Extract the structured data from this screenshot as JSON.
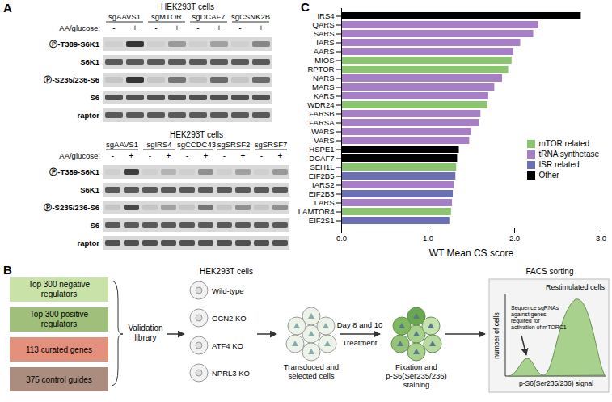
{
  "panel_labels": [
    "A",
    "B",
    "C"
  ],
  "blots": [
    {
      "cell_line": "HEK293T cells",
      "condition_label": "AA/glucose:",
      "conditions": [
        "-",
        "+"
      ],
      "groups": [
        "sgAAVS1",
        "sgMTOR",
        "sgDCAF7",
        "sgCSNK2B"
      ],
      "rows": [
        {
          "label": "Ⓟ-T389-S6K1",
          "intensity": [
            0.05,
            0.9,
            0.05,
            0.35,
            0.05,
            0.3,
            0.05,
            0.45
          ]
        },
        {
          "label": "S6K1",
          "intensity": [
            0.7,
            0.7,
            0.7,
            0.7,
            0.7,
            0.7,
            0.7,
            0.7
          ]
        },
        {
          "label": "Ⓟ-S235/236-S6",
          "intensity": [
            0.1,
            0.9,
            0.1,
            0.55,
            0.1,
            0.6,
            0.1,
            0.6
          ]
        },
        {
          "label": "S6",
          "intensity": [
            0.75,
            0.75,
            0.75,
            0.75,
            0.75,
            0.75,
            0.75,
            0.75
          ]
        },
        {
          "label": "raptor",
          "intensity": [
            0.7,
            0.7,
            0.7,
            0.7,
            0.7,
            0.7,
            0.7,
            0.7
          ]
        }
      ]
    },
    {
      "cell_line": "HEK293T cells",
      "condition_label": "AA/glucose:",
      "conditions": [
        "-",
        "+"
      ],
      "groups": [
        "sgAAVS1",
        "sgIRS4",
        "sgCCDC43",
        "sgSRSF2",
        "sgSRSF7"
      ],
      "rows": [
        {
          "label": "Ⓟ-T389-S6K1",
          "intensity": [
            0.05,
            0.85,
            0.05,
            0.2,
            0.05,
            0.4,
            0.05,
            0.3,
            0.05,
            0.35
          ]
        },
        {
          "label": "S6K1",
          "intensity": [
            0.7,
            0.7,
            0.7,
            0.7,
            0.7,
            0.7,
            0.7,
            0.7,
            0.7,
            0.7
          ]
        },
        {
          "label": "Ⓟ-S235/236-S6",
          "intensity": [
            0.1,
            0.8,
            0.1,
            0.3,
            0.1,
            0.55,
            0.1,
            0.4,
            0.1,
            0.4
          ]
        },
        {
          "label": "S6",
          "intensity": [
            0.7,
            0.7,
            0.7,
            0.7,
            0.7,
            0.7,
            0.7,
            0.7,
            0.7,
            0.7
          ]
        },
        {
          "label": "raptor",
          "intensity": [
            0.75,
            0.75,
            0.75,
            0.75,
            0.75,
            0.75,
            0.75,
            0.75,
            0.75,
            0.75
          ]
        }
      ]
    }
  ],
  "diagram": {
    "library_boxes": [
      {
        "text": "Top 300 negative regulators",
        "color": "#c9e2a8"
      },
      {
        "text": "Top 300 positive regulators",
        "color": "#9fbf7a"
      },
      {
        "text": "113 curated genes",
        "color": "#e3907c"
      },
      {
        "text": "375 control guides",
        "color": "#ab8d80"
      }
    ],
    "library_label": "Validation library",
    "cell_line": "HEK293T cells",
    "cell_types": [
      "Wild-type",
      "GCN2 KO",
      "ATF4 KO",
      "NPRL3 KO"
    ],
    "transduced": "Transduced and selected cells",
    "day": "Day 8 and 10",
    "treatment": "Treatment",
    "fixation": "Fixation and p-S6(Ser235/236) staining",
    "facs_title": "FACS sorting",
    "population": "Restimulated cells",
    "y_label": "number of cells",
    "x_label": "p-S6(Ser235/236) signal",
    "note": "Sequence sgRNAs against genes required for activation of mTORC1"
  },
  "chart_data": {
    "type": "bar",
    "orientation": "horizontal",
    "x_label": "WT Mean CS score",
    "xlim": [
      0,
      3
    ],
    "xticks": [
      0,
      1,
      2,
      3
    ],
    "legend": "right",
    "categories": [
      "IRS4",
      "QARS",
      "SARS",
      "IARS",
      "AARS",
      "MIOS",
      "RPTOR",
      "NARS",
      "MARS",
      "KARS",
      "WDR24",
      "FARSB",
      "FARSA",
      "WARS",
      "VARS",
      "HSPE1",
      "DCAF7",
      "SEH1L",
      "EIF2B5",
      "IARS2",
      "EIF2B3",
      "LARS",
      "LAMTOR4",
      "EIF2S1"
    ],
    "series": [
      {
        "name": "mTOR related",
        "color": "#8cc56f",
        "values": [
          null,
          null,
          null,
          null,
          null,
          1.97,
          1.93,
          null,
          null,
          null,
          1.69,
          null,
          null,
          null,
          null,
          null,
          null,
          1.33,
          null,
          null,
          null,
          null,
          1.27,
          null
        ]
      },
      {
        "name": "tRNA synthetase",
        "color": "#a67fc6",
        "values": [
          null,
          2.28,
          2.22,
          2.07,
          1.99,
          null,
          null,
          1.86,
          1.77,
          1.7,
          null,
          1.61,
          1.59,
          1.5,
          1.48,
          null,
          null,
          null,
          null,
          1.3,
          null,
          1.28,
          null,
          null
        ]
      },
      {
        "name": "ISR related",
        "color": "#6b6fb3",
        "values": [
          null,
          null,
          null,
          null,
          null,
          null,
          null,
          null,
          null,
          null,
          null,
          null,
          null,
          null,
          null,
          null,
          null,
          null,
          1.32,
          null,
          1.29,
          null,
          null,
          1.25
        ]
      },
      {
        "name": "Other",
        "color": "#000000",
        "values": [
          2.77,
          null,
          null,
          null,
          null,
          null,
          null,
          null,
          null,
          null,
          null,
          null,
          null,
          null,
          null,
          1.36,
          1.34,
          null,
          null,
          null,
          null,
          null,
          null,
          null
        ]
      }
    ]
  }
}
